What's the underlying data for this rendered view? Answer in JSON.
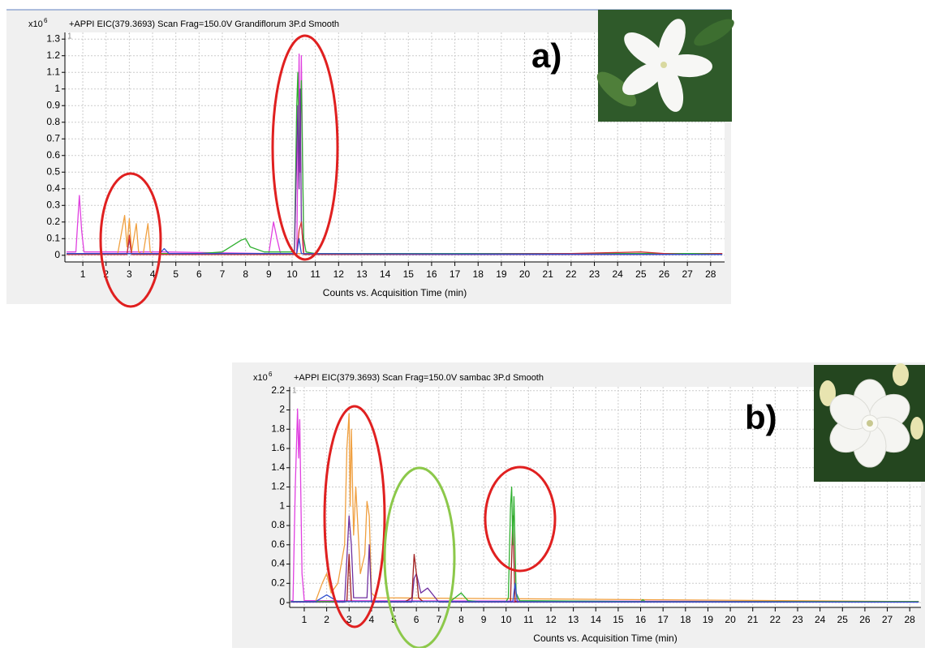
{
  "chart_data": [
    {
      "type": "line",
      "panel_label": "a)",
      "title": "+APPI EIC(379.3693) Scan Frag=150.0V Grandiflorum 3P.d  Smooth",
      "y_unit_label": "x10",
      "y_unit_exponent": "6",
      "trace_label": "1",
      "x_label": "Counts vs. Acquisition Time (min)",
      "xlim": [
        0.23,
        28.6
      ],
      "xticks": [
        1,
        2,
        3,
        4,
        5,
        6,
        7,
        8,
        9,
        10,
        11,
        12,
        13,
        14,
        15,
        16,
        17,
        18,
        19,
        20,
        21,
        22,
        23,
        24,
        25,
        26,
        27,
        28
      ],
      "ylim": [
        -0.04,
        1.34
      ],
      "yticks": [
        0,
        0.1,
        0.2,
        0.3,
        0.4,
        0.5,
        0.6,
        0.7,
        0.8,
        0.9,
        1,
        1.1,
        1.2,
        1.3
      ],
      "grid": true,
      "series": [
        {
          "color": "#e040e0",
          "x": [
            0.3,
            0.7,
            0.85,
            0.95,
            1.05,
            1.2,
            4.5,
            9.0,
            9.2,
            9.35,
            9.5,
            10.2,
            10.3,
            10.35,
            10.4,
            10.5,
            11,
            28.5
          ],
          "values": [
            0.02,
            0.02,
            0.36,
            0.15,
            0.02,
            0.02,
            0.02,
            0.01,
            0.2,
            0.1,
            0.01,
            0.01,
            1.21,
            0.5,
            1.2,
            0.01,
            0.01,
            0.01
          ]
        },
        {
          "color": "#f0a040",
          "x": [
            0.3,
            2.5,
            2.8,
            2.9,
            3.0,
            3.1,
            3.3,
            3.4,
            3.5,
            3.6,
            3.8,
            3.9,
            4.0,
            4.2,
            28.5
          ],
          "values": [
            0.01,
            0.01,
            0.24,
            0.05,
            0.22,
            0.02,
            0.19,
            0.02,
            0.01,
            0.01,
            0.19,
            0.02,
            0.01,
            0.01,
            0.01
          ]
        },
        {
          "color": "#30b030",
          "x": [
            0.3,
            6,
            7.0,
            7.8,
            8.0,
            8.2,
            8.8,
            9.5,
            10.1,
            10.2,
            10.25,
            10.3,
            10.4,
            10.5,
            10.6,
            11,
            28.5
          ],
          "values": [
            0.01,
            0.01,
            0.02,
            0.09,
            0.1,
            0.05,
            0.02,
            0.02,
            0.02,
            0.9,
            1.1,
            0.5,
            1.05,
            0.1,
            0.02,
            0.01,
            0.01
          ]
        },
        {
          "color": "#7030a0",
          "x": [
            0.3,
            2.9,
            3.0,
            3.1,
            10.1,
            10.2,
            10.25,
            10.3,
            10.35,
            10.4,
            10.5,
            28.5
          ],
          "values": [
            0.005,
            0.005,
            0.1,
            0.005,
            0.005,
            0.6,
            0.9,
            0.4,
            1.0,
            0.2,
            0.005,
            0.005
          ]
        },
        {
          "color": "#d03030",
          "x": [
            0.3,
            2.9,
            3.0,
            3.1,
            10.2,
            10.3,
            10.4,
            10.5,
            22,
            25,
            26,
            27,
            28.5
          ],
          "values": [
            0.005,
            0.005,
            0.12,
            0.005,
            0.005,
            0.15,
            0.2,
            0.005,
            0.01,
            0.02,
            0.01,
            0.005,
            0.01
          ]
        },
        {
          "color": "#3050d0",
          "x": [
            0.3,
            4.3,
            4.5,
            4.7,
            10.2,
            10.3,
            10.4,
            28.5
          ],
          "values": [
            0.01,
            0.01,
            0.04,
            0.01,
            0.01,
            0.1,
            0.01,
            0.005
          ]
        }
      ]
    },
    {
      "type": "line",
      "panel_label": "b)",
      "title": "+APPI EIC(379.3693) Scan Frag=150.0V sambac 3P.d  Smooth",
      "y_unit_label": "x10",
      "y_unit_exponent": "6",
      "trace_label": "1",
      "x_label": "Counts vs. Acquisition Time (min)",
      "xlim": [
        0.35,
        28.5
      ],
      "xticks": [
        1,
        2,
        3,
        4,
        5,
        6,
        7,
        8,
        9,
        10,
        11,
        12,
        13,
        14,
        15,
        16,
        17,
        18,
        19,
        20,
        21,
        22,
        23,
        24,
        25,
        26,
        27,
        28
      ],
      "ylim": [
        -0.05,
        2.24
      ],
      "yticks": [
        0,
        0.2,
        0.4,
        0.6,
        0.8,
        1,
        1.2,
        1.4,
        1.6,
        1.8,
        2,
        2.2
      ],
      "grid": true,
      "series": [
        {
          "color": "#e040e0",
          "x": [
            0.4,
            0.5,
            0.6,
            0.7,
            0.75,
            0.8,
            0.9,
            1.0,
            28.4
          ],
          "values": [
            0.02,
            0.02,
            1.2,
            2.01,
            1.5,
            1.9,
            0.3,
            0.02,
            0.01
          ]
        },
        {
          "color": "#f0a040",
          "x": [
            0.4,
            1.5,
            1.8,
            2.0,
            2.2,
            2.5,
            2.8,
            2.9,
            3.0,
            3.05,
            3.1,
            3.2,
            3.3,
            3.5,
            3.7,
            3.8,
            3.9,
            4.0,
            4.2,
            28.4
          ],
          "values": [
            0.01,
            0.01,
            0.2,
            0.3,
            0.1,
            0.2,
            0.6,
            1.6,
            1.96,
            1.0,
            1.8,
            0.7,
            1.2,
            0.3,
            0.5,
            1.05,
            0.9,
            0.1,
            0.05,
            0.01
          ]
        },
        {
          "color": "#7030a0",
          "x": [
            0.4,
            2.8,
            3.0,
            3.1,
            3.2,
            3.8,
            3.9,
            4.0,
            5.8,
            5.9,
            6.0,
            6.2,
            6.5,
            7.0,
            28.4
          ],
          "values": [
            0.005,
            0.005,
            0.9,
            0.6,
            0.05,
            0.05,
            0.6,
            0.005,
            0.005,
            0.25,
            0.3,
            0.1,
            0.15,
            0.005,
            0.005
          ]
        },
        {
          "color": "#a02020",
          "x": [
            0.4,
            2.9,
            3.0,
            3.1,
            5.5,
            5.8,
            5.9,
            6.0,
            6.1,
            6.3,
            10.2,
            10.3,
            10.4,
            28.4
          ],
          "values": [
            0.01,
            0.01,
            0.5,
            0.01,
            0.01,
            0.05,
            0.5,
            0.3,
            0.05,
            0.01,
            0.01,
            0.9,
            0.01,
            0.01
          ]
        },
        {
          "color": "#30b030",
          "x": [
            0.4,
            7.5,
            8.0,
            8.3,
            8.8,
            10.0,
            10.1,
            10.2,
            10.25,
            10.3,
            10.35,
            10.45,
            10.6,
            16,
            16.1,
            16.2,
            28.4
          ],
          "values": [
            0.01,
            0.01,
            0.1,
            0.02,
            0.01,
            0.01,
            0.05,
            1.0,
            1.2,
            0.6,
            1.1,
            0.1,
            0.02,
            0.01,
            0.03,
            0.01,
            0.01
          ]
        },
        {
          "color": "#3050d0",
          "x": [
            0.4,
            1.5,
            2.0,
            2.5,
            9.0,
            10.3,
            10.4,
            10.5,
            28.4
          ],
          "values": [
            0.01,
            0.01,
            0.08,
            0.01,
            0.01,
            0.01,
            0.2,
            0.01,
            0.005
          ]
        }
      ]
    }
  ]
}
